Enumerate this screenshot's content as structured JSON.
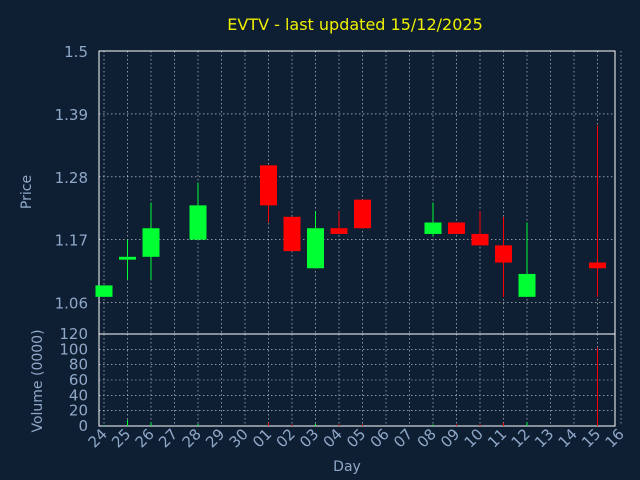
{
  "colors": {
    "background": "#0f1f33",
    "frame": "#ffffff",
    "grid": "#ffffff",
    "title": "#f0f000",
    "axis_text": "#8fa8c8",
    "up": "#00ff33",
    "down": "#ff0000"
  },
  "chart_data": [
    {
      "type": "candlestick",
      "title": "EVTV - last updated 15/12/2025",
      "ylabel": "Price",
      "ylim": [
        1.005,
        1.5
      ],
      "yticks": [
        "1.5",
        "1.39",
        "1.28",
        "1.17",
        "1.06"
      ],
      "ytick_values": [
        1.5,
        1.39,
        1.28,
        1.17,
        1.06
      ],
      "grid": true,
      "candles": [
        {
          "day": "24",
          "open": 1.07,
          "high": 1.09,
          "low": 1.07,
          "close": 1.09
        },
        {
          "day": "25",
          "open": 1.135,
          "high": 1.17,
          "low": 1.1,
          "close": 1.14
        },
        {
          "day": "26",
          "open": 1.14,
          "high": 1.235,
          "low": 1.1,
          "close": 1.19
        },
        {
          "day": "28",
          "open": 1.17,
          "high": 1.27,
          "low": 1.17,
          "close": 1.23
        },
        {
          "day": "01",
          "open": 1.3,
          "high": 1.3,
          "low": 1.2,
          "close": 1.23
        },
        {
          "day": "02",
          "open": 1.21,
          "high": 1.21,
          "low": 1.15,
          "close": 1.15
        },
        {
          "day": "03",
          "open": 1.12,
          "high": 1.22,
          "low": 1.12,
          "close": 1.19
        },
        {
          "day": "04",
          "open": 1.19,
          "high": 1.22,
          "low": 1.18,
          "close": 1.18
        },
        {
          "day": "05",
          "open": 1.24,
          "high": 1.24,
          "low": 1.19,
          "close": 1.19
        },
        {
          "day": "08",
          "open": 1.18,
          "high": 1.235,
          "low": 1.175,
          "close": 1.2
        },
        {
          "day": "09",
          "open": 1.2,
          "high": 1.2,
          "low": 1.18,
          "close": 1.18
        },
        {
          "day": "10",
          "open": 1.18,
          "high": 1.22,
          "low": 1.16,
          "close": 1.16
        },
        {
          "day": "11",
          "open": 1.16,
          "high": 1.21,
          "low": 1.07,
          "close": 1.13
        },
        {
          "day": "12",
          "open": 1.07,
          "high": 1.2,
          "low": 1.07,
          "close": 1.11
        },
        {
          "day": "15",
          "open": 1.13,
          "high": 1.37,
          "low": 1.07,
          "close": 1.12
        }
      ]
    },
    {
      "type": "bar",
      "ylabel": "Volume (0000)",
      "ylim": [
        0,
        120
      ],
      "yticks": [
        "120",
        "100",
        "80",
        "60",
        "40",
        "20",
        "0"
      ],
      "ytick_values": [
        120,
        100,
        80,
        60,
        40,
        20,
        0
      ],
      "xlabel": "Day",
      "categories": [
        "24",
        "25",
        "26",
        "27",
        "28",
        "29",
        "30",
        "01",
        "02",
        "03",
        "04",
        "05",
        "06",
        "07",
        "08",
        "09",
        "10",
        "11",
        "12",
        "13",
        "14",
        "15",
        "16"
      ],
      "bars": [
        {
          "day": "24",
          "value": 1,
          "color": "up"
        },
        {
          "day": "25",
          "value": 8,
          "color": "up"
        },
        {
          "day": "26",
          "value": 5,
          "color": "up"
        },
        {
          "day": "28",
          "value": 3,
          "color": "up"
        },
        {
          "day": "01",
          "value": 4,
          "color": "down"
        },
        {
          "day": "02",
          "value": 2,
          "color": "down"
        },
        {
          "day": "03",
          "value": 3,
          "color": "up"
        },
        {
          "day": "04",
          "value": 2,
          "color": "down"
        },
        {
          "day": "05",
          "value": 2,
          "color": "down"
        },
        {
          "day": "08",
          "value": 2,
          "color": "up"
        },
        {
          "day": "09",
          "value": 2,
          "color": "down"
        },
        {
          "day": "10",
          "value": 2,
          "color": "down"
        },
        {
          "day": "11",
          "value": 4,
          "color": "down"
        },
        {
          "day": "12",
          "value": 5,
          "color": "up"
        },
        {
          "day": "15",
          "value": 102,
          "color": "down"
        }
      ],
      "grid": true
    }
  ]
}
